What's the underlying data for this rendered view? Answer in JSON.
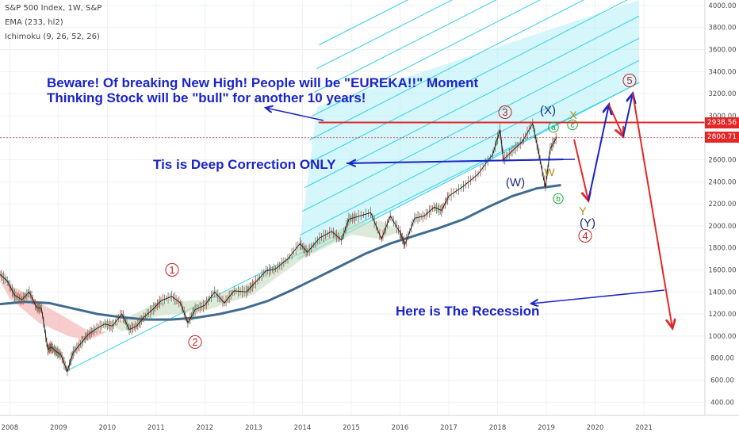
{
  "legend": {
    "symbol_line": "S&P 500 Index, 1W, S&P",
    "ema_line": "EMA (233, hl2)",
    "ichimoku_line": "Ichimoku (9, 26, 52, 26)"
  },
  "annotations": {
    "eureka_line1": "Beware! Of breaking New High! People will be \"EUREKA!!\" Moment",
    "eureka_line2": "Thinking Stock will be \"bull\" for another 10 years!",
    "correction": "Tis is Deep Correction ONLY",
    "recession": "Here is The Recession"
  },
  "price_tags": {
    "resistance": "2938.56",
    "last": "2800.71"
  },
  "colors": {
    "price": "#1a1a1a",
    "ema": "#3f6b8f",
    "cloud_bull": "#c8dcc0",
    "cloud_bear": "#f4b6b6",
    "channel_fill": "#b3f0f7",
    "channel_line": "#35d0e6",
    "annotation_blue": "#1a24c9",
    "annotation_red": "#e32727",
    "wave_red": "#c21f1f",
    "wave_navy": "#1b2a7a",
    "wave_green": "#1aa83c",
    "wave_gold": "#b08a1e"
  },
  "chart_data": {
    "type": "line",
    "title": "S&P 500 Index, 1W, S&P",
    "xlabel": "",
    "ylabel": "",
    "x_range": [
      2007.8,
      2022.25
    ],
    "y_range": [
      280,
      4050
    ],
    "x_ticks": [
      {
        "value": 2008,
        "label": "2008"
      },
      {
        "value": 2009,
        "label": "2009"
      },
      {
        "value": 2010,
        "label": "2010"
      },
      {
        "value": 2011,
        "label": "2011"
      },
      {
        "value": 2012,
        "label": "2012"
      },
      {
        "value": 2013,
        "label": "2013"
      },
      {
        "value": 2014,
        "label": "2014"
      },
      {
        "value": 2015,
        "label": "2015"
      },
      {
        "value": 2016,
        "label": "2016"
      },
      {
        "value": 2017,
        "label": "2017"
      },
      {
        "value": 2018,
        "label": "2018"
      },
      {
        "value": 2019,
        "label": "2019"
      },
      {
        "value": 2020,
        "label": "2020"
      },
      {
        "value": 2021,
        "label": "2021"
      }
    ],
    "y_ticks": [
      {
        "value": 400,
        "label": "400.00"
      },
      {
        "value": 600,
        "label": "600.00"
      },
      {
        "value": 800,
        "label": "800.00"
      },
      {
        "value": 1000,
        "label": "1000.00"
      },
      {
        "value": 1200,
        "label": "1200.00"
      },
      {
        "value": 1400,
        "label": "1400.00"
      },
      {
        "value": 1600,
        "label": "1600.00"
      },
      {
        "value": 1800,
        "label": "1800.00"
      },
      {
        "value": 2000,
        "label": "2000.00"
      },
      {
        "value": 2200,
        "label": "2200.00"
      },
      {
        "value": 2400,
        "label": "2400.00"
      },
      {
        "value": 2600,
        "label": "2600.00"
      },
      {
        "value": 2800,
        "label": "2800.00"
      },
      {
        "value": 3000,
        "label": "3000.00"
      },
      {
        "value": 3200,
        "label": "3200.00"
      },
      {
        "value": 3400,
        "label": "3400.00"
      },
      {
        "value": 3600,
        "label": "3600.00"
      },
      {
        "value": 3800,
        "label": "3800.00"
      },
      {
        "value": 4000,
        "label": "4000.00"
      }
    ],
    "series": [
      {
        "name": "S&P 500 Index",
        "points": [
          [
            2007.8,
            1560
          ],
          [
            2007.95,
            1500
          ],
          [
            2008.1,
            1370
          ],
          [
            2008.25,
            1330
          ],
          [
            2008.4,
            1400
          ],
          [
            2008.55,
            1260
          ],
          [
            2008.65,
            1250
          ],
          [
            2008.78,
            880
          ],
          [
            2008.85,
            900
          ],
          [
            2008.95,
            860
          ],
          [
            2009.05,
            830
          ],
          [
            2009.18,
            680
          ],
          [
            2009.3,
            850
          ],
          [
            2009.45,
            930
          ],
          [
            2009.6,
            1010
          ],
          [
            2009.75,
            1060
          ],
          [
            2009.95,
            1110
          ],
          [
            2010.1,
            1090
          ],
          [
            2010.3,
            1200
          ],
          [
            2010.45,
            1060
          ],
          [
            2010.6,
            1090
          ],
          [
            2010.75,
            1170
          ],
          [
            2010.95,
            1250
          ],
          [
            2011.1,
            1320
          ],
          [
            2011.32,
            1360
          ],
          [
            2011.5,
            1300
          ],
          [
            2011.65,
            1120
          ],
          [
            2011.8,
            1240
          ],
          [
            2012.0,
            1280
          ],
          [
            2012.2,
            1400
          ],
          [
            2012.4,
            1300
          ],
          [
            2012.6,
            1410
          ],
          [
            2012.85,
            1400
          ],
          [
            2013.0,
            1470
          ],
          [
            2013.25,
            1590
          ],
          [
            2013.45,
            1610
          ],
          [
            2013.7,
            1700
          ],
          [
            2013.95,
            1840
          ],
          [
            2014.1,
            1760
          ],
          [
            2014.35,
            1890
          ],
          [
            2014.6,
            1950
          ],
          [
            2014.8,
            1870
          ],
          [
            2014.95,
            2060
          ],
          [
            2015.1,
            2080
          ],
          [
            2015.4,
            2120
          ],
          [
            2015.62,
            1880
          ],
          [
            2015.8,
            2090
          ],
          [
            2016.0,
            1940
          ],
          [
            2016.1,
            1830
          ],
          [
            2016.3,
            2070
          ],
          [
            2016.5,
            2090
          ],
          [
            2016.7,
            2170
          ],
          [
            2016.85,
            2140
          ],
          [
            2017.0,
            2270
          ],
          [
            2017.3,
            2360
          ],
          [
            2017.6,
            2470
          ],
          [
            2017.9,
            2650
          ],
          [
            2018.05,
            2870
          ],
          [
            2018.12,
            2600
          ],
          [
            2018.3,
            2680
          ],
          [
            2018.5,
            2760
          ],
          [
            2018.72,
            2930
          ],
          [
            2018.85,
            2650
          ],
          [
            2018.98,
            2350
          ],
          [
            2019.08,
            2700
          ],
          [
            2019.22,
            2810
          ]
        ]
      },
      {
        "name": "EMA (233, hl2)",
        "points": [
          [
            2007.8,
            1290
          ],
          [
            2008.3,
            1310
          ],
          [
            2008.8,
            1300
          ],
          [
            2009.3,
            1250
          ],
          [
            2009.8,
            1200
          ],
          [
            2010.3,
            1170
          ],
          [
            2010.8,
            1150
          ],
          [
            2011.3,
            1150
          ],
          [
            2011.8,
            1165
          ],
          [
            2012.3,
            1200
          ],
          [
            2012.8,
            1250
          ],
          [
            2013.3,
            1320
          ],
          [
            2013.8,
            1420
          ],
          [
            2014.3,
            1530
          ],
          [
            2014.8,
            1640
          ],
          [
            2015.3,
            1750
          ],
          [
            2015.8,
            1840
          ],
          [
            2016.3,
            1910
          ],
          [
            2016.8,
            1980
          ],
          [
            2017.3,
            2060
          ],
          [
            2017.8,
            2170
          ],
          [
            2018.3,
            2270
          ],
          [
            2018.8,
            2340
          ],
          [
            2019.3,
            2370
          ]
        ]
      }
    ]
  }
}
